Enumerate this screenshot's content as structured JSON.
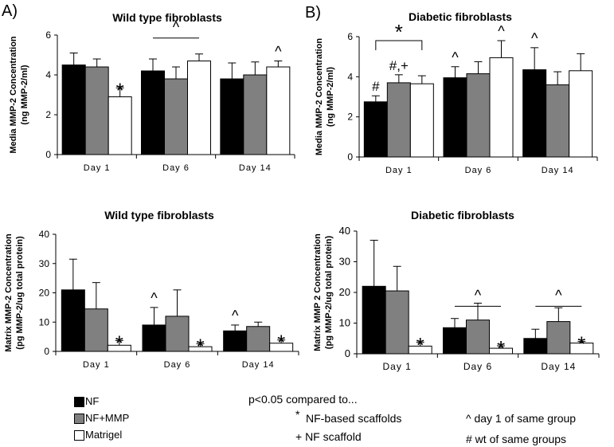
{
  "legend": [
    {
      "label": "NF",
      "color": "#000000"
    },
    {
      "label": "NF+MMP",
      "color": "#808080"
    },
    {
      "label": "Matrigel",
      "color": "#ffffff"
    }
  ],
  "footnotes": {
    "intro": "p<0.05 compared to...",
    "star": "NF-based scaffolds",
    "star_symbol": "*",
    "plus": "+ NF scaffold",
    "caret": "^ day 1 of same group",
    "hash": "# wt of same groups"
  },
  "chart_data": [
    {
      "id": "A-top",
      "panel_label": "A)",
      "type": "bar",
      "title": "Wild type fibroblasts",
      "ylabel": "Media MMP-2 Concentration (ng MMP-2/ml)",
      "ylabel_lines": [
        "Media MMP-2 Concentration",
        "(ng MMP-2/ml)"
      ],
      "ylim": [
        0,
        6
      ],
      "yticks": [
        "0",
        "2",
        "4",
        "6"
      ],
      "categories": [
        "Day 1",
        "Day 6",
        "Day 14"
      ],
      "series": [
        {
          "name": "NF",
          "values": [
            4.5,
            4.2,
            3.8
          ],
          "errors": [
            0.6,
            0.6,
            0.8
          ]
        },
        {
          "name": "NF+MMP",
          "values": [
            4.4,
            3.8,
            4.0
          ],
          "errors": [
            0.4,
            0.6,
            0.65
          ]
        },
        {
          "name": "Matrigel",
          "values": [
            2.9,
            4.7,
            4.4
          ],
          "errors": [
            0.45,
            0.35,
            0.3
          ]
        }
      ],
      "annotations": [
        {
          "text": "*",
          "category": 0,
          "series": 2
        },
        {
          "text": "^",
          "category": 2,
          "series": 2
        }
      ],
      "brackets": [
        {
          "text": "^",
          "from": [
            1,
            0
          ],
          "to": [
            1,
            2
          ],
          "y": 5.85
        }
      ]
    },
    {
      "id": "B-top",
      "panel_label": "B)",
      "type": "bar",
      "title": "Diabetic fibroblasts",
      "ylabel": "Media MMP-2 Concentration (ng MMP-2/ml)",
      "ylabel_lines": [
        "Media MMP-2 Concentration",
        "(ng MMP-2/ml)"
      ],
      "ylim": [
        0,
        6
      ],
      "yticks": [
        "0",
        "2",
        "4",
        "6"
      ],
      "categories": [
        "Day 1",
        "Day 6",
        "Day 14"
      ],
      "series": [
        {
          "name": "NF",
          "values": [
            2.75,
            3.95,
            4.35
          ],
          "errors": [
            0.3,
            0.55,
            1.1
          ]
        },
        {
          "name": "NF+MMP",
          "values": [
            3.7,
            4.15,
            3.6
          ],
          "errors": [
            0.4,
            0.6,
            0.65
          ]
        },
        {
          "name": "Matrigel",
          "values": [
            3.65,
            4.95,
            4.3
          ],
          "errors": [
            0.4,
            0.85,
            0.85
          ]
        }
      ],
      "annotations": [
        {
          "text": "#",
          "category": 0,
          "series": 0
        },
        {
          "text": "#,+",
          "category": 0,
          "series": 1
        },
        {
          "text": "^",
          "category": 1,
          "series": 0
        },
        {
          "text": "^",
          "category": 1,
          "series": 2
        },
        {
          "text": "^",
          "category": 2,
          "series": 0
        }
      ],
      "brackets": [
        {
          "text": "*",
          "from": [
            0,
            0
          ],
          "to": [
            0,
            2
          ],
          "y": 5.8
        }
      ]
    },
    {
      "id": "A-bottom",
      "panel_label": "",
      "type": "bar",
      "title": "Wild type fibroblasts",
      "ylabel": "Matrix MMP-2 Concentration (pg MMP-2/ug total protein)",
      "ylabel_lines": [
        "Matrix MMP-2 Concentration",
        "(pg MMP-2/ug total protein)"
      ],
      "ylim": [
        0,
        40
      ],
      "yticks": [
        "0",
        "10",
        "20",
        "30",
        "40"
      ],
      "categories": [
        "Day 1",
        "Day 6",
        "Day 14"
      ],
      "series": [
        {
          "name": "NF",
          "values": [
            21,
            9,
            7
          ],
          "errors": [
            10.5,
            6,
            2
          ]
        },
        {
          "name": "NF+MMP",
          "values": [
            14.5,
            12,
            8.5
          ],
          "errors": [
            9,
            9,
            1.5
          ]
        },
        {
          "name": "Matrigel",
          "values": [
            2.1,
            1.6,
            2.8
          ],
          "errors": [
            1.6,
            1.0,
            1.1
          ]
        }
      ],
      "annotations": [
        {
          "text": "*",
          "category": 0,
          "series": 2
        },
        {
          "text": "^",
          "category": 1,
          "series": 0
        },
        {
          "text": "*",
          "category": 1,
          "series": 2
        },
        {
          "text": "^",
          "category": 2,
          "series": 0
        },
        {
          "text": "*",
          "category": 2,
          "series": 2
        }
      ],
      "brackets": []
    },
    {
      "id": "B-bottom",
      "panel_label": "",
      "type": "bar",
      "title": "Diabetic fibroblasts",
      "ylabel": "Matrix MMP 2 Concentration (pg MMP-2/ug total protein)",
      "ylabel_lines": [
        "Matrix MMP 2 Concentration",
        "(pg MMP-2/ug total protein)"
      ],
      "ylim": [
        0,
        40
      ],
      "yticks": [
        "0",
        "10",
        "20",
        "30",
        "40"
      ],
      "categories": [
        "Day 1",
        "Day 6",
        "Day 14"
      ],
      "series": [
        {
          "name": "NF",
          "values": [
            22,
            8.5,
            5
          ],
          "errors": [
            15,
            3,
            3
          ]
        },
        {
          "name": "NF+MMP",
          "values": [
            20.5,
            11,
            10.5
          ],
          "errors": [
            8,
            5.5,
            4.5
          ]
        },
        {
          "name": "Matrigel",
          "values": [
            2.5,
            1.8,
            3.5
          ],
          "errors": [
            1.2,
            0.8,
            0.5
          ]
        }
      ],
      "annotations": [
        {
          "text": "*",
          "category": 0,
          "series": 2
        },
        {
          "text": "*",
          "category": 1,
          "series": 2
        },
        {
          "text": "*",
          "category": 2,
          "series": 2
        }
      ],
      "brackets": [
        {
          "text": "^",
          "from": [
            1,
            0
          ],
          "to": [
            1,
            2
          ],
          "y": 15.5
        },
        {
          "text": "^",
          "from": [
            2,
            0
          ],
          "to": [
            2,
            2
          ],
          "y": 15.5
        }
      ]
    }
  ]
}
